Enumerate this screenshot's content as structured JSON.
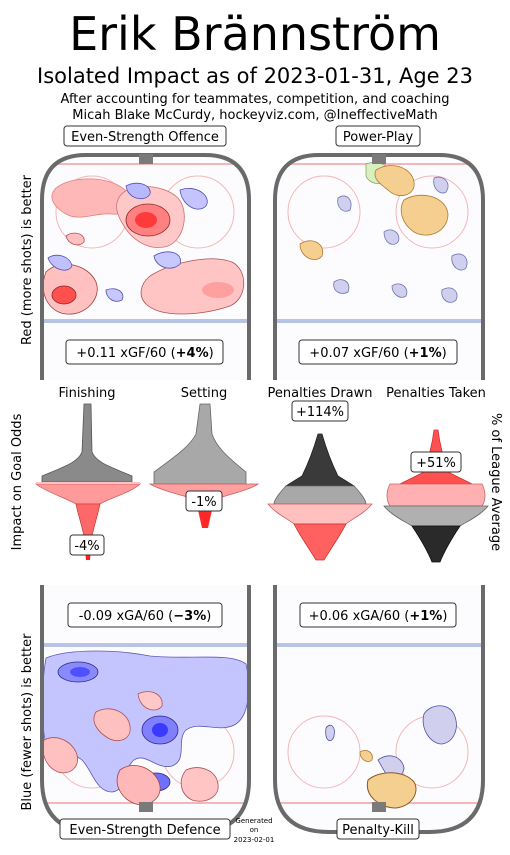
{
  "header": {
    "player_name": "Erik Brännström",
    "subtitle": "Isolated Impact as of 2023-01-31, Age 23",
    "note_line1": "After accounting for teammates, competition, and coaching",
    "note_line2": "Micah Blake McCurdy, hockeyviz.com, @IneffectiveMath"
  },
  "side_labels": {
    "left_top": "Red (more shots) is better",
    "left_middle": "Impact on Goal Odds",
    "left_bottom": "Blue (fewer shots) is better",
    "right_middle": "% of League Average"
  },
  "generated": {
    "line1": "Generated",
    "line2": "on",
    "line3": "2023-02-01"
  },
  "colors": {
    "red": "#ff3030",
    "blue": "#3030ff",
    "orange": "#f5c47a",
    "gray": "#808080",
    "rink_line": "#6a6a6a"
  },
  "chart_data": [
    {
      "type": "heatmap",
      "panel": "Even-Strength Offence",
      "value_text": "+0.11 xGF/60 (",
      "pct_text": "+4%",
      "value_close": ")",
      "xgf_per60": 0.11,
      "pct": 4
    },
    {
      "type": "heatmap",
      "panel": "Power-Play",
      "value_text": "+0.07 xGF/60 (",
      "pct_text": "+1%",
      "value_close": ")",
      "xgf_per60": 0.07,
      "pct": 1
    },
    {
      "type": "heatmap",
      "panel": "Even-Strength Defence",
      "value_text": "-0.09 xGA/60 (",
      "pct_text": "−3%",
      "value_close": ")",
      "xga_per60": -0.09,
      "pct": -3
    },
    {
      "type": "heatmap",
      "panel": "Penalty-Kill",
      "value_text": "+0.06 xGA/60 (",
      "pct_text": "+1%",
      "value_close": ")",
      "xga_per60": 0.06,
      "pct": 1
    },
    {
      "type": "area",
      "title": "Impact on Goal Odds",
      "series": [
        {
          "name": "Finishing",
          "value_label": "-4%",
          "value": -4
        },
        {
          "name": "Setting",
          "value_label": "-1%",
          "value": -1
        }
      ]
    },
    {
      "type": "area",
      "title": "% of League Average",
      "series": [
        {
          "name": "Penalties Drawn",
          "value_label": "+114%",
          "value": 114
        },
        {
          "name": "Penalties Taken",
          "value_label": "+51%",
          "value": 51
        }
      ]
    }
  ]
}
